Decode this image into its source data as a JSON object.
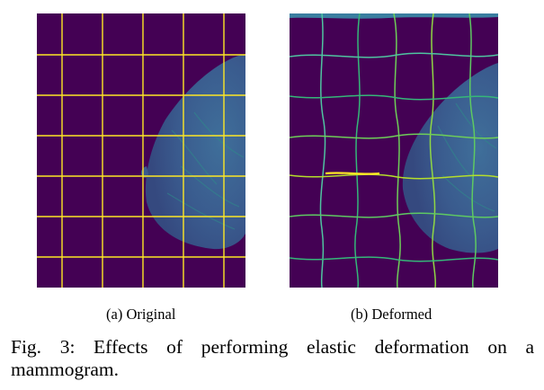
{
  "figure": {
    "panel_a": {
      "label": "(a) Original",
      "image": "mammogram with regular yellow grid overlay"
    },
    "panel_b": {
      "label": "(b) Deformed",
      "image": "elastically deformed mammogram with warped grid overlay"
    },
    "caption": "Fig. 3: Effects of performing elastic deformation on a mammogram."
  },
  "colors": {
    "background": "#440154",
    "tissue": "#3b5b8f",
    "tissue_bright": "#2a8c8c",
    "grid_original": "#fde725",
    "grid_deformed": "#7ad151"
  }
}
